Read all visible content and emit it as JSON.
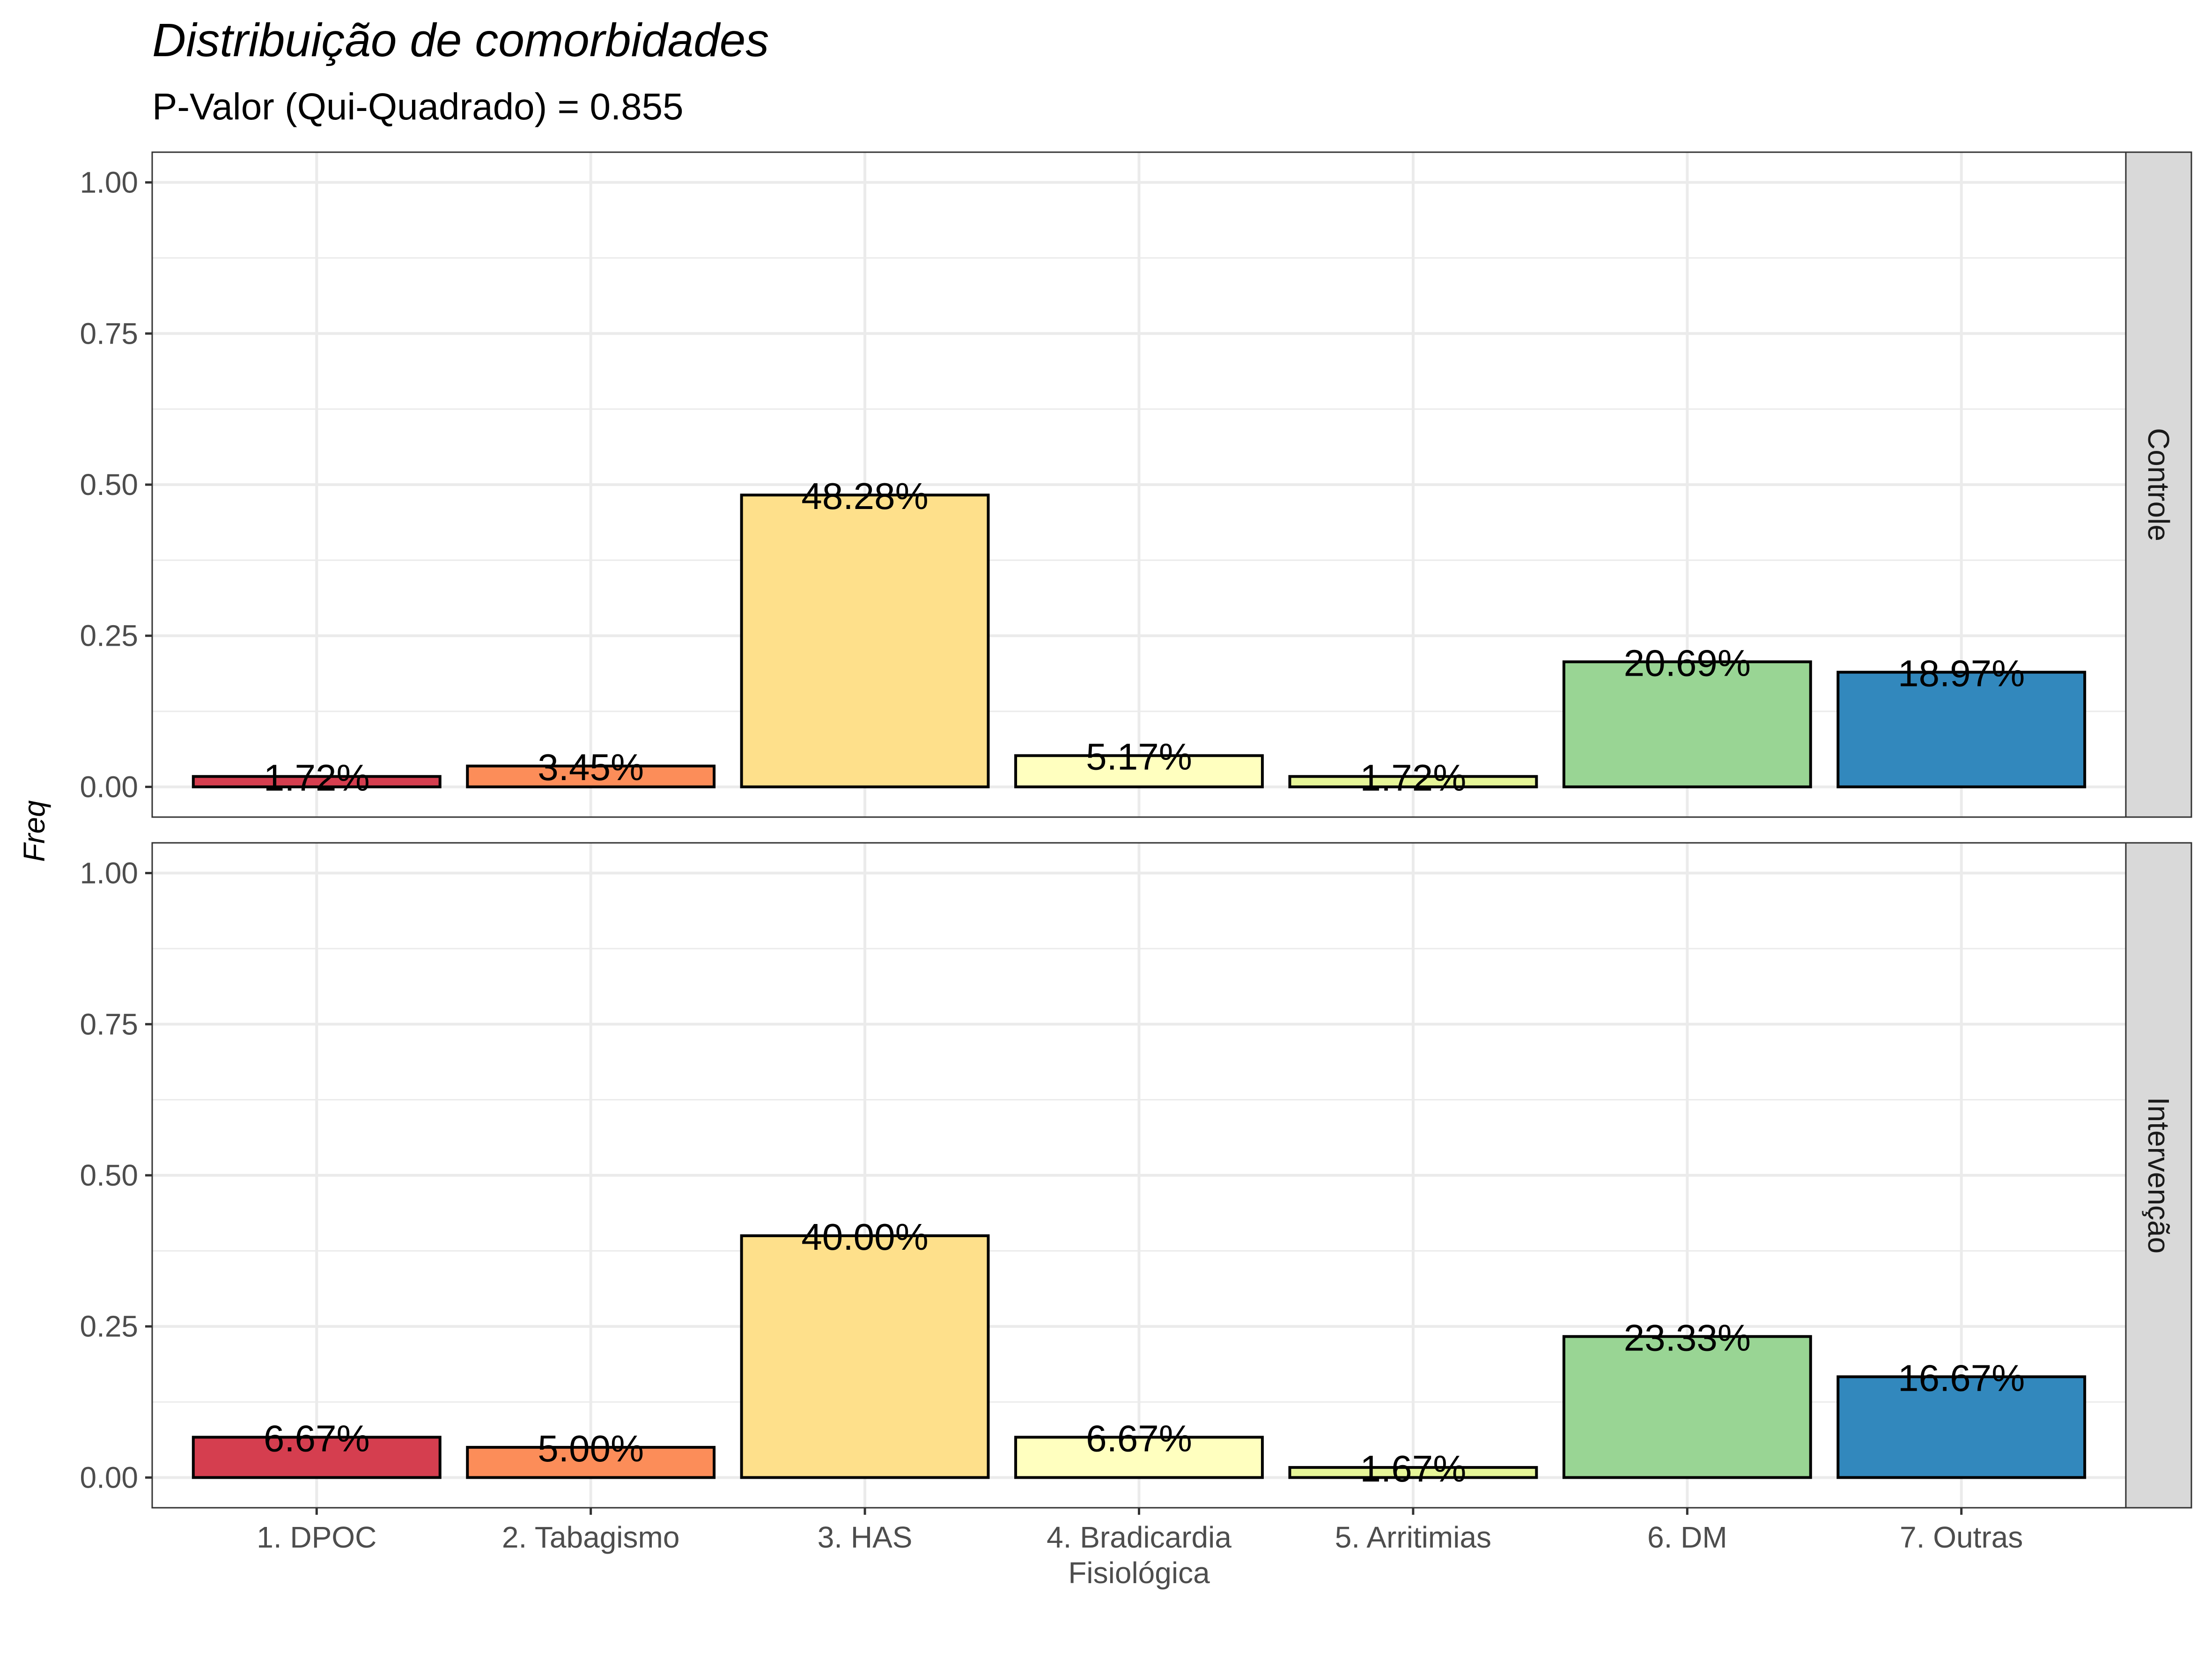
{
  "chart_data": {
    "type": "bar",
    "title": "Distribuição de comorbidades",
    "subtitle": "P-Valor (Qui-Quadrado) = 0.855",
    "xlabel": "",
    "ylabel": "Freq",
    "ylim": [
      0,
      1
    ],
    "yticks": [
      "0.00",
      "0.25",
      "0.50",
      "0.75",
      "1.00"
    ],
    "grid": true,
    "legend": "none",
    "categories": [
      "1. DPOC",
      "2. Tabagismo",
      "3. HAS",
      "4. Bradicardia\nFisiológica",
      "5. Arritimias",
      "6. DM",
      "7. Outras"
    ],
    "colors": [
      "#D53E4F",
      "#FC8D59",
      "#FEE08B",
      "#FFFFBF",
      "#E6F598",
      "#99D594",
      "#3288BD"
    ],
    "panels": [
      {
        "name": "Controle",
        "values": [
          0.0172,
          0.0345,
          0.4828,
          0.0517,
          0.0172,
          0.2069,
          0.1897
        ],
        "labels": [
          "1.72%",
          "3.45%",
          "48.28%",
          "5.17%",
          "1.72%",
          "20.69%",
          "18.97%"
        ]
      },
      {
        "name": "Intervenção",
        "values": [
          0.0667,
          0.05,
          0.4,
          0.0667,
          0.0167,
          0.2333,
          0.1667
        ],
        "labels": [
          "6.67%",
          "5.00%",
          "40.00%",
          "6.67%",
          "1.67%",
          "23.33%",
          "16.67%"
        ]
      }
    ]
  }
}
